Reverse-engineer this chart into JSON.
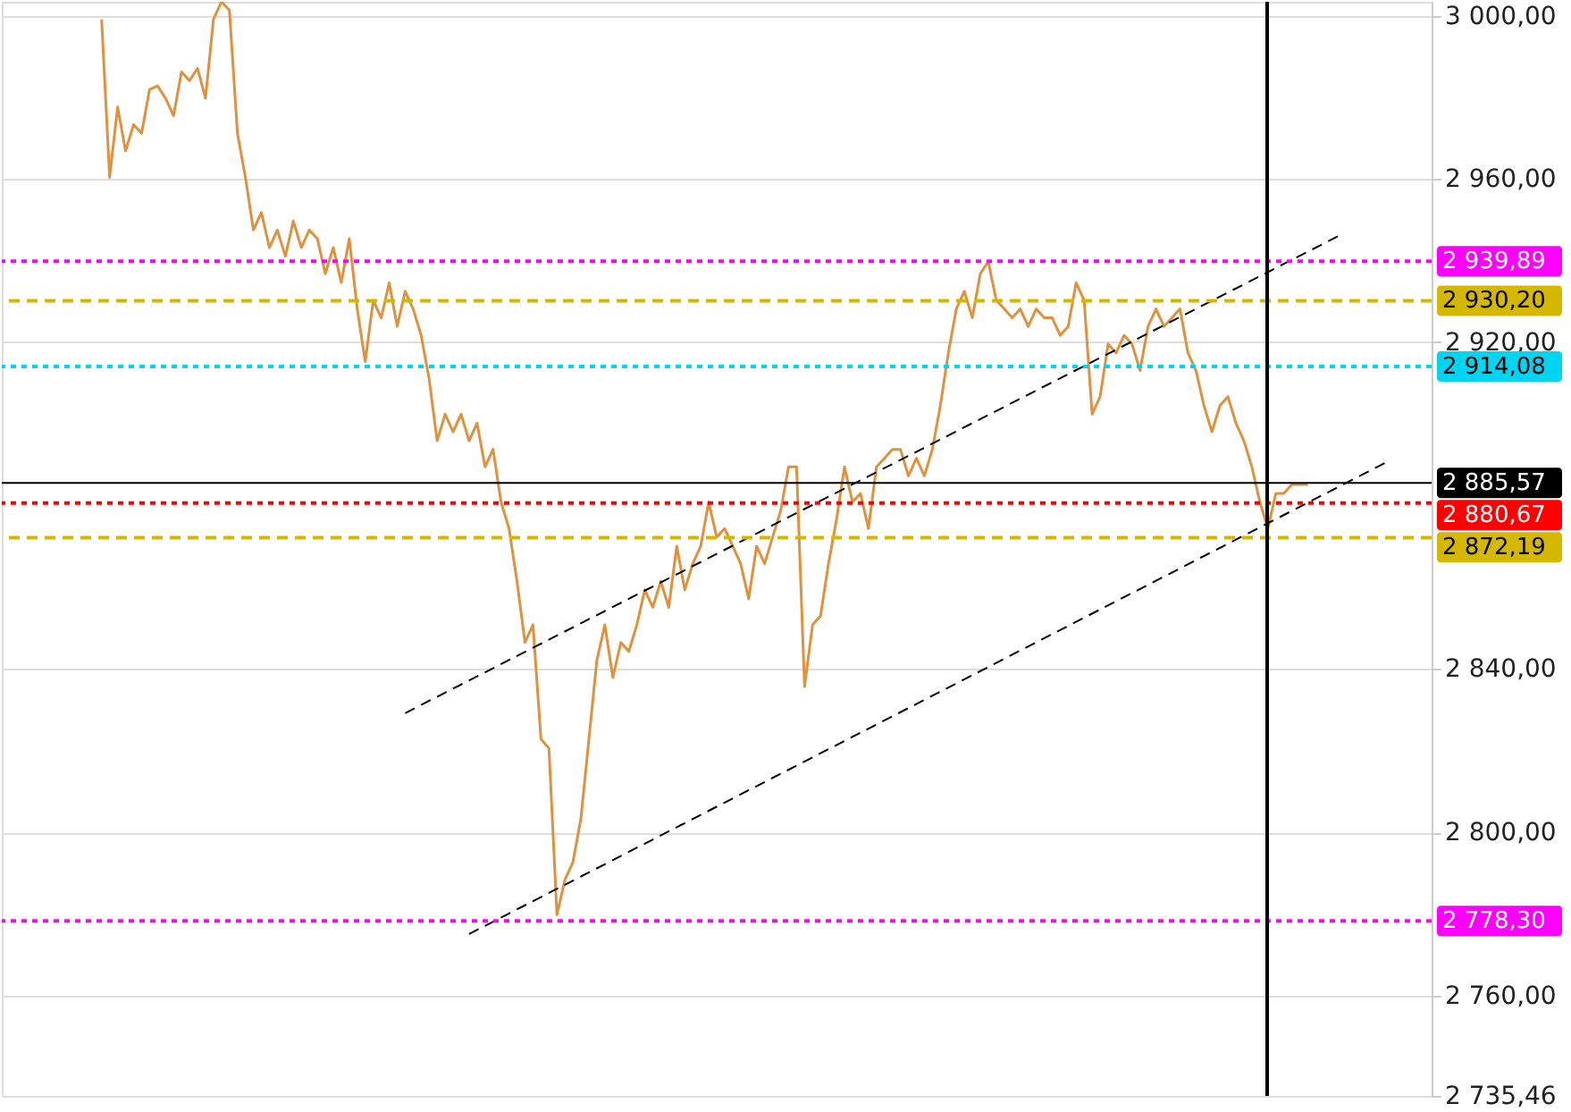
{
  "chart_data": {
    "type": "line",
    "ylim": [
      2735.46,
      3003.4
    ],
    "categories": [
      null,
      null,
      null,
      null,
      null,
      null,
      null,
      null,
      null,
      null,
      null,
      null,
      null,
      null,
      null,
      null,
      null,
      null,
      null,
      null,
      null,
      null,
      null,
      null,
      null,
      null,
      null,
      null,
      null,
      null,
      null,
      null,
      null,
      null,
      null,
      null,
      null,
      null,
      null,
      null,
      null,
      null,
      null,
      null,
      null,
      null,
      null,
      null,
      null,
      null,
      null,
      null,
      null,
      null,
      null,
      null,
      null,
      null,
      null,
      null,
      null,
      null,
      null,
      null,
      null,
      null,
      null,
      null,
      null,
      null,
      null,
      null,
      null,
      null,
      null,
      null,
      null,
      null,
      null,
      null,
      null,
      null,
      null,
      null,
      null,
      null,
      null,
      null,
      null,
      null,
      null,
      null,
      null,
      null,
      null,
      null,
      null,
      null,
      null,
      null,
      null,
      null,
      null,
      null,
      null,
      null,
      null,
      null,
      null,
      null,
      null,
      null,
      null,
      null,
      null,
      null,
      null,
      null,
      null,
      null,
      null,
      null,
      null,
      null,
      null,
      null,
      null,
      null,
      null,
      null,
      null,
      null,
      null,
      null,
      null,
      null,
      null,
      null,
      null,
      null,
      null,
      null,
      null,
      null,
      null,
      null,
      null,
      null,
      null,
      null,
      null,
      null,
      null,
      null,
      null,
      null,
      null,
      null,
      null,
      null,
      null,
      null,
      null,
      null,
      null,
      null,
      null,
      null,
      null,
      null,
      null,
      null,
      null,
      null,
      null,
      null,
      null,
      null,
      null
    ],
    "yticks": [
      {
        "value": 2735.46,
        "label": "2 735,46"
      },
      {
        "value": 2760,
        "label": "2 760,00"
      },
      {
        "value": 2800,
        "label": "2 800,00"
      },
      {
        "value": 2840,
        "label": "2 840,00"
      },
      {
        "value": 2920,
        "label": "2 920,00"
      },
      {
        "value": 2960,
        "label": "2 960,00"
      },
      {
        "value": 3000,
        "label": "3 000,00"
      }
    ],
    "tick_labels": "y",
    "grid": "y",
    "series": [
      {
        "color": "#e0913e",
        "values": [
          null,
          null,
          null,
          null,
          null,
          null,
          null,
          null,
          null,
          null,
          null,
          null,
          2999.1,
          2960.4,
          2977.6,
          2966.9,
          2973.3,
          2971.2,
          2981.9,
          2982.8,
          2979.8,
          2975.5,
          2986.2,
          2984.1,
          2987.1,
          2979.8,
          2999.1,
          3003.4,
          3001.3,
          2971.2,
          2960.4,
          2947.5,
          2951.8,
          2943.2,
          2947.5,
          2941.1,
          2949.7,
          2943.2,
          2947.5,
          2945.4,
          2936.8,
          2943.2,
          2934.6,
          2945.4,
          2928.2,
          2915.3,
          2930.3,
          2926.0,
          2934.6,
          2923.9,
          2932.5,
          2928.2,
          2921.7,
          2911.0,
          2895.9,
          2902.4,
          2898.1,
          2902.4,
          2895.9,
          2900.2,
          2889.5,
          2893.8,
          2880.9,
          2874.4,
          2861.5,
          2846.5,
          2850.8,
          2822.8,
          2820.6,
          2779.8,
          2788.4,
          2792.7,
          2803.4,
          2822.8,
          2842.2,
          2850.8,
          2837.9,
          2846.5,
          2844.3,
          2850.8,
          2859.4,
          2855.1,
          2861.5,
          2855.1,
          2870.1,
          2859.4,
          2865.8,
          2870.1,
          2880.9,
          2872.3,
          2874.4,
          2870.1,
          2865.8,
          2857.2,
          2870.1,
          2865.8,
          2872.3,
          2878.7,
          2889.5,
          2889.5,
          2835.7,
          2850.8,
          2853.0,
          2865.8,
          2876.6,
          2889.5,
          2880.9,
          2883.0,
          2874.4,
          2889.5,
          2891.6,
          2893.8,
          2893.8,
          2887.3,
          2891.6,
          2887.3,
          2893.8,
          2904.5,
          2917.4,
          2928.2,
          2932.5,
          2926.0,
          2936.8,
          2939.8,
          2930.3,
          2928.2,
          2926.0,
          2928.2,
          2923.9,
          2928.2,
          2926.0,
          2926.0,
          2921.7,
          2923.9,
          2934.6,
          2930.3,
          2902.4,
          2906.7,
          2919.6,
          2917.4,
          2921.7,
          2919.6,
          2913.1,
          2923.9,
          2928.2,
          2923.9,
          2926.0,
          2928.2,
          2917.4,
          2913.1,
          2904.5,
          2898.1,
          2904.5,
          2906.7,
          2900.2,
          2895.9,
          2889.5,
          2880.9,
          2874.4,
          2883.0,
          2883.0,
          2885.2,
          2885.2,
          2885.2,
          null,
          null,
          null,
          null,
          null,
          null,
          null,
          null,
          null,
          null,
          null,
          null,
          null,
          null,
          null
        ]
      },
      {
        "type": "line",
        "color": "#000000",
        "line_style": "dashed",
        "values": [
          null,
          null,
          null,
          null,
          null,
          null,
          null,
          null,
          null,
          null,
          null,
          null,
          null,
          null,
          null,
          null,
          null,
          null,
          null,
          null,
          null,
          null,
          null,
          null,
          null,
          null,
          null,
          null,
          null,
          null,
          null,
          null,
          null,
          null,
          null,
          null,
          null,
          null,
          null,
          null,
          null,
          null,
          null,
          null,
          null,
          null,
          null,
          null,
          null,
          null,
          2829.2,
          null,
          null,
          null,
          null,
          null,
          null,
          null,
          null,
          null,
          null,
          null,
          null,
          null,
          null,
          null,
          null,
          null,
          null,
          null,
          null,
          null,
          null,
          null,
          null,
          null,
          null,
          null,
          null,
          null,
          null,
          null,
          null,
          null,
          null,
          null,
          null,
          null,
          null,
          null,
          null,
          null,
          null,
          null,
          null,
          null,
          null,
          null,
          null,
          null,
          null,
          null,
          null,
          null,
          null,
          null,
          null,
          null,
          null,
          null,
          null,
          null,
          null,
          null,
          null,
          null,
          null,
          null,
          null,
          null,
          null,
          null,
          null,
          null,
          null,
          null,
          null,
          null,
          null,
          null,
          null,
          null,
          null,
          null,
          null,
          null,
          null,
          null,
          null,
          null,
          null,
          null,
          null,
          null,
          null,
          null,
          null,
          null,
          null,
          null,
          null,
          null,
          null,
          null,
          null,
          null,
          null,
          null,
          null,
          null,
          null,
          null,
          null,
          null,
          null,
          null,
          null,
          2946.2,
          null,
          null,
          null,
          null,
          null,
          null,
          null,
          null,
          null,
          null,
          null
        ]
      },
      {
        "type": "line",
        "color": "#000000",
        "line_style": "dashed",
        "values": [
          null,
          null,
          null,
          null,
          null,
          null,
          null,
          null,
          null,
          null,
          null,
          null,
          null,
          null,
          null,
          null,
          null,
          null,
          null,
          null,
          null,
          null,
          null,
          null,
          null,
          null,
          null,
          null,
          null,
          null,
          null,
          null,
          null,
          null,
          null,
          null,
          null,
          null,
          null,
          null,
          null,
          null,
          null,
          null,
          null,
          null,
          null,
          null,
          null,
          null,
          null,
          null,
          null,
          null,
          null,
          null,
          null,
          null,
          2775.1,
          null,
          null,
          null,
          null,
          null,
          null,
          null,
          null,
          null,
          null,
          null,
          null,
          null,
          null,
          null,
          null,
          null,
          null,
          null,
          null,
          null,
          null,
          null,
          null,
          null,
          null,
          null,
          null,
          null,
          null,
          null,
          null,
          null,
          null,
          null,
          null,
          null,
          null,
          null,
          null,
          null,
          null,
          null,
          null,
          null,
          null,
          null,
          null,
          null,
          null,
          null,
          null,
          null,
          null,
          null,
          null,
          null,
          null,
          null,
          null,
          null,
          null,
          null,
          null,
          null,
          null,
          null,
          null,
          null,
          null,
          null,
          null,
          null,
          null,
          null,
          null,
          null,
          null,
          null,
          null,
          null,
          null,
          null,
          null,
          null,
          null,
          null,
          null,
          null,
          null,
          null,
          null,
          null,
          null,
          null,
          null,
          null,
          null,
          null,
          null,
          null,
          null,
          null,
          null,
          null,
          null,
          null,
          null,
          null,
          null,
          null,
          null,
          null,
          null,
          2890.8,
          null,
          null,
          null,
          null,
          null
        ]
      }
    ],
    "ref_lines": [
      {
        "axis": "y",
        "value": 2939.89,
        "label": "2 939,89",
        "color": "#ff00ff",
        "line_style": "dotted"
      },
      {
        "axis": "y",
        "value": 2930.2,
        "label": "2 930,20",
        "color": "#d4b800",
        "line_style": "dashed"
      },
      {
        "axis": "y",
        "value": 2914.08,
        "label": "2 914,08",
        "color": "#00d4f0",
        "line_style": "dotted"
      },
      {
        "axis": "y",
        "value": 2885.57,
        "label": "2 885,57",
        "color": "#000000",
        "line_style": "solid"
      },
      {
        "axis": "y",
        "value": 2880.67,
        "label": "2 880,67",
        "color": "#ff0000",
        "line_style": "dotted"
      },
      {
        "axis": "y",
        "value": 2872.19,
        "label": "2 872,19",
        "color": "#d4b800",
        "line_style": "dashed"
      },
      {
        "axis": "y",
        "value": 2778.3,
        "label": "2 778,30",
        "color": "#ff00ff",
        "line_style": "dotted"
      }
    ]
  }
}
